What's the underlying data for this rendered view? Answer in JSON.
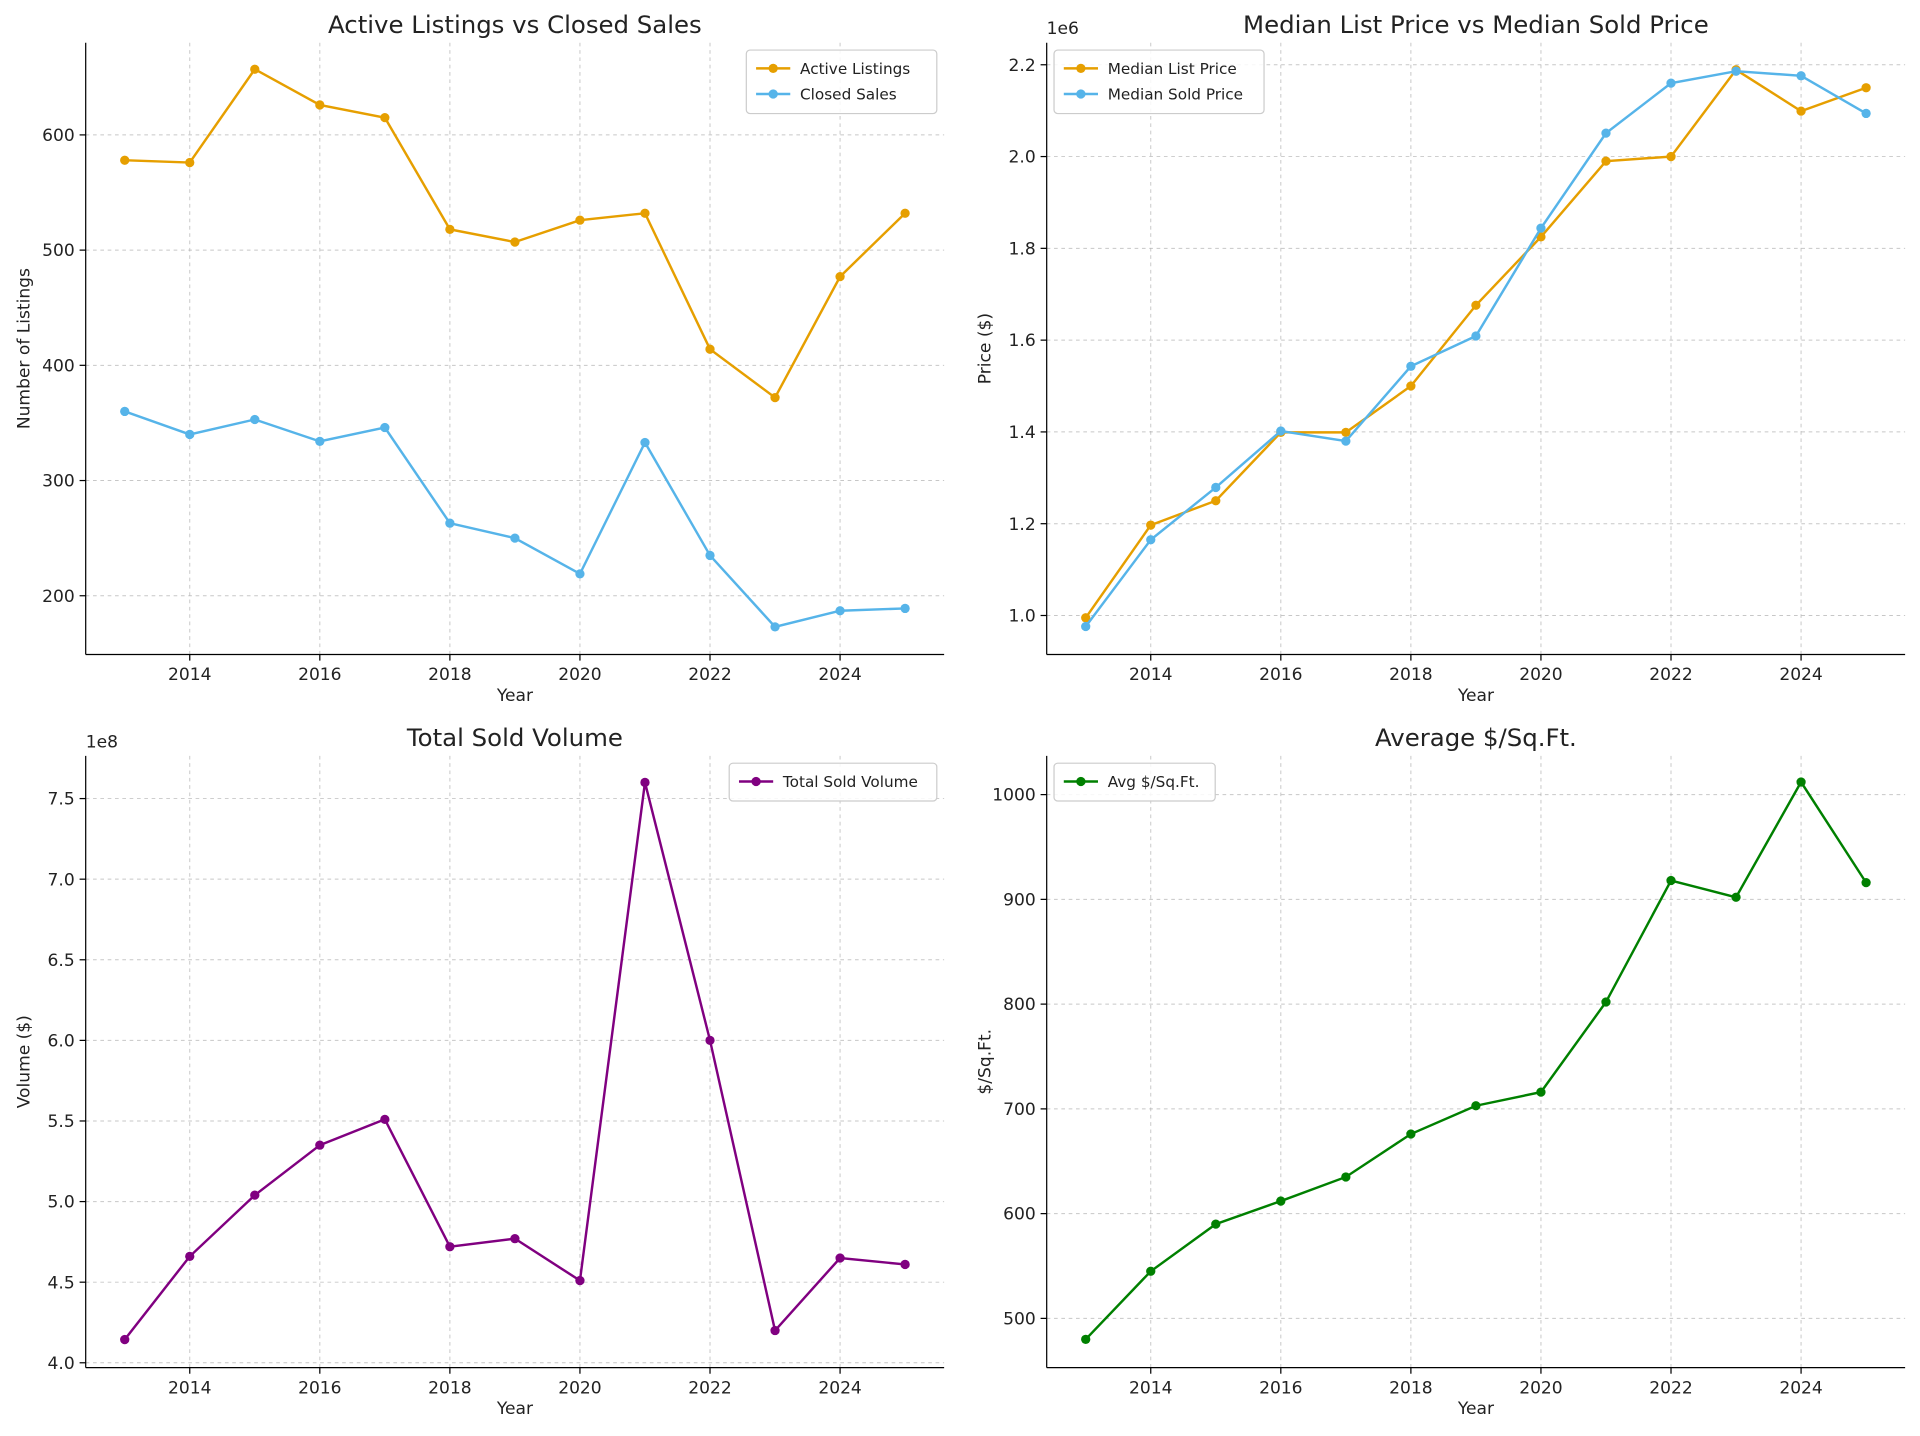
{
  "chart_data": [
    {
      "type": "line",
      "title": "Active Listings vs Closed Sales",
      "xlabel": "Year",
      "ylabel": "Number of Listings",
      "x": [
        2013,
        2014,
        2015,
        2016,
        2017,
        2018,
        2019,
        2020,
        2021,
        2022,
        2023,
        2024,
        2025
      ],
      "xlim": [
        2012.4,
        2025.6
      ],
      "ylim": [
        149,
        680
      ],
      "xticks": [
        2014,
        2016,
        2018,
        2020,
        2022,
        2024
      ],
      "yticks": [
        200,
        300,
        400,
        500,
        600
      ],
      "tick_labels_y": [
        "200",
        "300",
        "400",
        "500",
        "600"
      ],
      "offset_label": "",
      "grid": true,
      "legend": "upper right",
      "series": [
        {
          "name": "Active Listings",
          "color": "#E69F00",
          "values": [
            578,
            576,
            657,
            626,
            615,
            518,
            507,
            526,
            532,
            414,
            372,
            477,
            532
          ]
        },
        {
          "name": "Closed Sales",
          "color": "#56B4E9",
          "values": [
            360,
            340,
            353,
            334,
            346,
            263,
            250,
            219,
            333,
            235,
            173,
            187,
            189
          ]
        }
      ]
    },
    {
      "type": "line",
      "title": "Median List Price vs Median Sold Price",
      "xlabel": "Year",
      "ylabel": "Price ($)",
      "x": [
        2013,
        2014,
        2015,
        2016,
        2017,
        2018,
        2019,
        2020,
        2021,
        2022,
        2023,
        2024,
        2025
      ],
      "xlim": [
        2012.4,
        2025.6
      ],
      "ylim": [
        915000,
        2248000
      ],
      "xticks": [
        2014,
        2016,
        2018,
        2020,
        2022,
        2024
      ],
      "yticks": [
        1000000,
        1200000,
        1400000,
        1600000,
        1800000,
        2000000,
        2200000
      ],
      "tick_labels_y": [
        "1.0",
        "1.2",
        "1.4",
        "1.6",
        "1.8",
        "2.0",
        "2.2"
      ],
      "offset_label": "1e6",
      "grid": true,
      "legend": "upper left",
      "series": [
        {
          "name": "Median List Price",
          "color": "#E69F00",
          "values": [
            995000,
            1197000,
            1250000,
            1399000,
            1399000,
            1500000,
            1676000,
            1825000,
            1990000,
            2000000,
            2189000,
            2099000,
            2150000
          ]
        },
        {
          "name": "Median Sold Price",
          "color": "#56B4E9",
          "values": [
            976000,
            1165000,
            1279000,
            1402000,
            1380000,
            1543000,
            1609000,
            1844000,
            2051000,
            2160000,
            2186000,
            2176000,
            2094000
          ]
        }
      ]
    },
    {
      "type": "line",
      "title": "Total Sold Volume",
      "xlabel": "Year",
      "ylabel": "Volume ($)",
      "x": [
        2013,
        2014,
        2015,
        2016,
        2017,
        2018,
        2019,
        2020,
        2021,
        2022,
        2023,
        2024,
        2025
      ],
      "xlim": [
        2012.4,
        2025.6
      ],
      "ylim": [
        397000000,
        776500000
      ],
      "xticks": [
        2014,
        2016,
        2018,
        2020,
        2022,
        2024
      ],
      "yticks": [
        400000000,
        450000000,
        500000000,
        550000000,
        600000000,
        650000000,
        700000000,
        750000000
      ],
      "tick_labels_y": [
        "4.0",
        "4.5",
        "5.0",
        "5.5",
        "6.0",
        "6.5",
        "7.0",
        "7.5"
      ],
      "offset_label": "1e8",
      "grid": true,
      "legend": "upper right",
      "series": [
        {
          "name": "Total Sold Volume",
          "color": "#800080",
          "values": [
            414400000,
            466000000,
            504000000,
            535000000,
            551000000,
            472000000,
            477000000,
            451000000,
            760000000,
            600000000,
            420000000,
            465000000,
            461000000
          ]
        }
      ]
    },
    {
      "type": "line",
      "title": "Average $/Sq.Ft.",
      "xlabel": "Year",
      "ylabel": "$/Sq.Ft.",
      "x": [
        2013,
        2014,
        2015,
        2016,
        2017,
        2018,
        2019,
        2020,
        2021,
        2022,
        2023,
        2024,
        2025
      ],
      "xlim": [
        2012.4,
        2025.6
      ],
      "ylim": [
        453,
        1037
      ],
      "xticks": [
        2014,
        2016,
        2018,
        2020,
        2022,
        2024
      ],
      "yticks": [
        500,
        600,
        700,
        800,
        900,
        1000
      ],
      "tick_labels_y": [
        "500",
        "600",
        "700",
        "800",
        "900",
        "1000"
      ],
      "offset_label": "",
      "grid": true,
      "legend": "upper left",
      "series": [
        {
          "name": "Avg $/Sq.Ft.",
          "color": "#008000",
          "values": [
            480,
            545,
            590,
            612,
            635,
            676,
            703,
            716,
            802,
            918,
            902,
            1012,
            916
          ]
        }
      ]
    }
  ]
}
